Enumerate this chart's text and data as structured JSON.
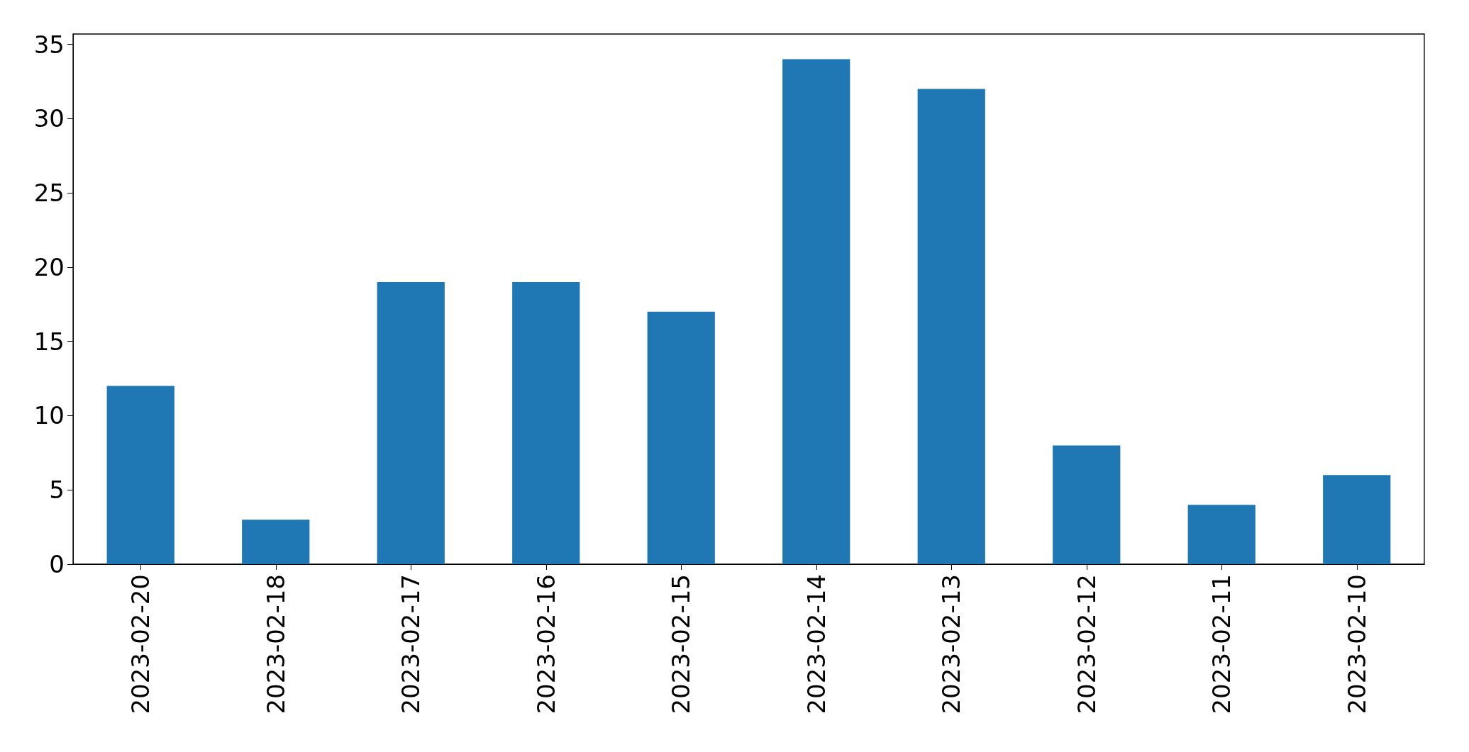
{
  "chart_data": {
    "type": "bar",
    "categories": [
      "2023-02-20",
      "2023-02-18",
      "2023-02-17",
      "2023-02-16",
      "2023-02-15",
      "2023-02-14",
      "2023-02-13",
      "2023-02-12",
      "2023-02-11",
      "2023-02-10"
    ],
    "values": [
      12,
      3,
      19,
      19,
      17,
      34,
      32,
      8,
      4,
      6
    ],
    "color": "#1f77b4",
    "ylim": [
      0,
      35.7
    ],
    "yticks": [
      0,
      5,
      10,
      15,
      20,
      25,
      30,
      35
    ],
    "grid": false
  }
}
